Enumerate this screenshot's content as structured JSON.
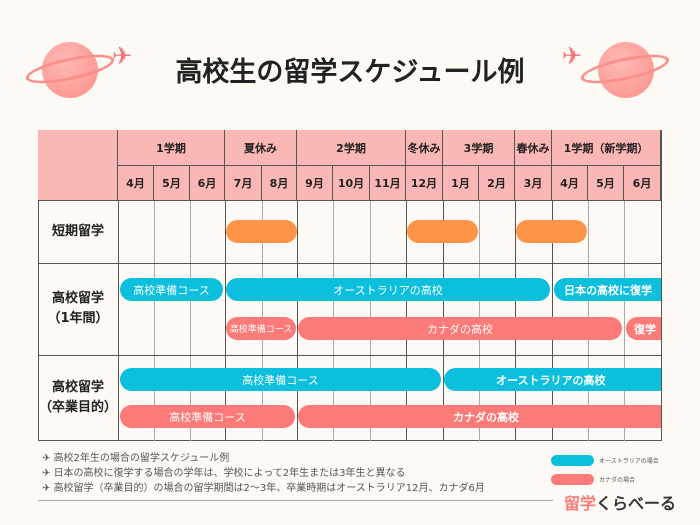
{
  "title": "高校生の留学スケジュール例",
  "terms": [
    "1学期",
    "夏休み",
    "2学期",
    "冬休み",
    "3学期",
    "春休み",
    "1学期（新学期）"
  ],
  "months": [
    "4月",
    "5月",
    "6月",
    "7月",
    "8月",
    "9月",
    "10月",
    "11月",
    "12月",
    "1月",
    "2月",
    "3月",
    "4月",
    "5月",
    "6月"
  ],
  "rows": [
    {
      "label": "短期留学"
    },
    {
      "label1": "高校留学",
      "label2": "（1年間）"
    },
    {
      "label1": "高校留学",
      "label2": "（卒業目的）"
    }
  ],
  "bars": {
    "prep_au_1y": "高校準備コース",
    "au_school_1y": "オーストラリアの高校",
    "return_1y": "日本の高校に復学",
    "prep_ca_1y": "高校準備コース",
    "ca_school_1y": "カナダの高校",
    "return_ca_1y": "復学",
    "prep_au_grad": "高校準備コース",
    "au_school_grad": "オーストラリアの高校",
    "prep_ca_grad": "高校準備コース",
    "ca_school_grad": "カナダの高校"
  },
  "notes": [
    "高校2年生の場合の留学スケジュール例",
    "日本の高校に復学する場合の学年は、学校によって2年生または3年生と異なる",
    "高校留学（卒業目的）の場合の留学期間は2〜3年、卒業時期はオーストラリア12月、カナダ6月"
  ],
  "legend": {
    "australia": "オーストラリアの場合",
    "canada": "カナダの場合"
  },
  "logo": {
    "part1": "留学",
    "part2": "くらべーる"
  },
  "colors": {
    "australia": "#0bbfdd",
    "canada": "#fc7a78",
    "short": "#fd9447",
    "header": "#fbb7b5"
  }
}
